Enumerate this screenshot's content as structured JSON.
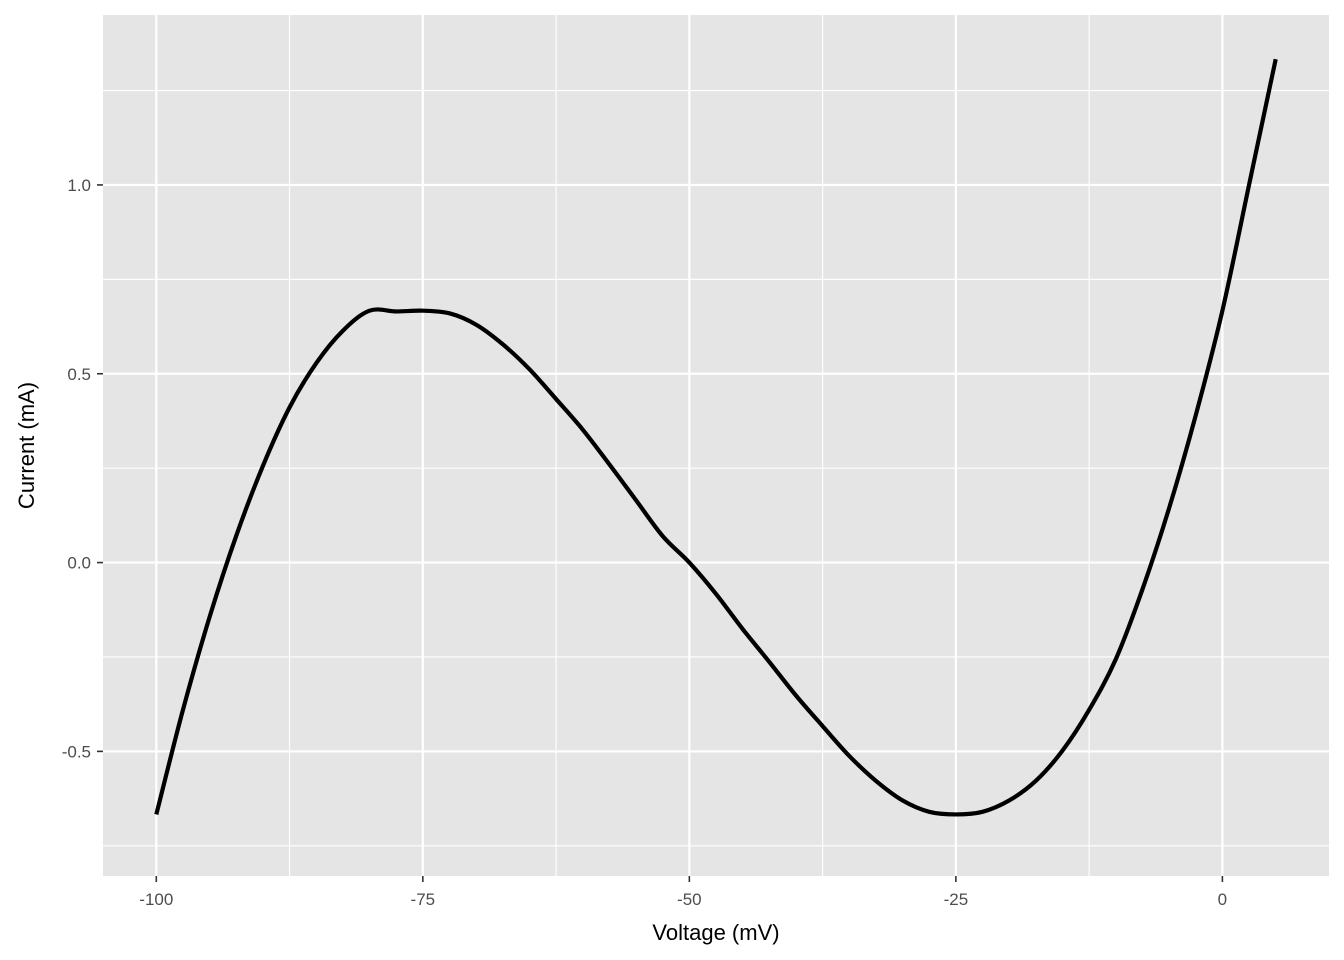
{
  "chart_data": {
    "type": "line",
    "title": "",
    "xlabel": "Voltage (mV)",
    "ylabel": "Current (mA)",
    "xlim": [
      -105,
      10
    ],
    "ylim": [
      -0.83,
      1.45
    ],
    "x_ticks": [
      -100,
      -75,
      -50,
      -25,
      0
    ],
    "x_tick_labels": [
      "-100",
      "-75",
      "-50",
      "-25",
      "0"
    ],
    "x_minor_ticks": [
      -87.5,
      -62.5,
      -37.5,
      -12.5
    ],
    "y_ticks": [
      -0.5,
      0.0,
      0.5,
      1.0
    ],
    "y_tick_labels": [
      "-0.5",
      "0.0",
      "0.5",
      "1.0"
    ],
    "y_minor_ticks": [
      -0.75,
      -0.25,
      0.25,
      0.75,
      1.25
    ],
    "grid": true,
    "legend": "none",
    "colors": {
      "panel": "#e5e5e5",
      "grid": "#ffffff",
      "line": "#000000",
      "tick": "#333333"
    },
    "series": [
      {
        "x": [
          -100,
          -97.5,
          -95,
          -92.5,
          -90,
          -87.5,
          -85,
          -82.5,
          -80,
          -77.5,
          -75,
          -72.5,
          -70,
          -67.5,
          -65,
          -62.5,
          -60,
          -57.5,
          -55,
          -52.5,
          -50,
          -47.5,
          -45,
          -42.5,
          -40,
          -37.5,
          -35,
          -32.5,
          -30,
          -27.5,
          -25,
          -22.5,
          -20,
          -17.5,
          -15,
          -12.5,
          -10,
          -7.5,
          -5,
          -2.5,
          0,
          2.5,
          5
        ],
        "y": [
          -0.667,
          -0.39,
          -0.144,
          0.071,
          0.256,
          0.411,
          0.528,
          0.614,
          0.667,
          0.665,
          0.667,
          0.66,
          0.63,
          0.578,
          0.512,
          0.433,
          0.352,
          0.26,
          0.165,
          0.07,
          0.0,
          -0.083,
          -0.176,
          -0.263,
          -0.352,
          -0.433,
          -0.512,
          -0.578,
          -0.63,
          -0.66,
          -0.667,
          -0.66,
          -0.63,
          -0.578,
          -0.498,
          -0.39,
          -0.256,
          -0.071,
          0.144,
          0.39,
          0.667,
          1.0,
          1.333
        ]
      }
    ]
  }
}
